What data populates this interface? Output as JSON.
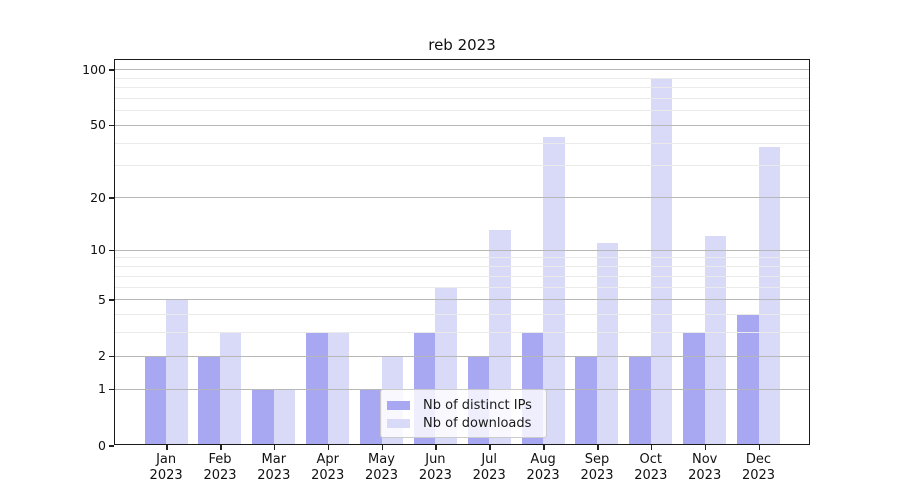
{
  "chart_data": {
    "type": "bar",
    "title": "reb 2023",
    "scale": "log10(1+x) symlog-style y axis",
    "categories": [
      "Jan 2023",
      "Feb 2023",
      "Mar 2023",
      "Apr 2023",
      "May 2023",
      "Jun 2023",
      "Jul 2023",
      "Aug 2023",
      "Sep 2023",
      "Oct 2023",
      "Nov 2023",
      "Dec 2023"
    ],
    "series": [
      {
        "name": "Nb of distinct IPs",
        "color": "#a8a8f2",
        "values": [
          2,
          2,
          1,
          3,
          1,
          3,
          2,
          3,
          2,
          2,
          3,
          4
        ]
      },
      {
        "name": "Nb of downloads",
        "color": "#d9d9f8",
        "values": [
          5,
          3,
          1,
          3,
          2,
          6,
          13,
          43,
          11,
          90,
          12,
          38
        ]
      }
    ],
    "y_ticks": [
      0,
      1,
      2,
      5,
      10,
      20,
      50,
      100
    ],
    "y_minor_ticks": [
      3,
      4,
      6,
      7,
      8,
      9,
      30,
      40,
      60,
      70,
      80,
      90
    ],
    "ylim": [
      0,
      113
    ],
    "grid": "major and minor horizontal gridlines drawn above bars",
    "legend_position": "lower center, inside plot, translucent white box",
    "colors": {
      "grid_major": "#b7b7b7",
      "grid_minor": "#eaeaea",
      "axis": "#1a1a1a"
    }
  }
}
